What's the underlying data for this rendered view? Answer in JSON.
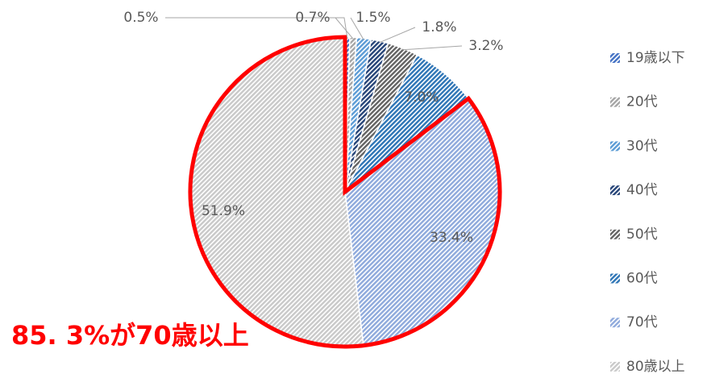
{
  "chart_data": {
    "type": "pie",
    "categories": [
      "19歳以下",
      "20代",
      "30代",
      "40代",
      "50代",
      "60代",
      "70代",
      "80歳以上"
    ],
    "values": [
      0.5,
      0.7,
      1.5,
      1.8,
      3.2,
      7.0,
      33.4,
      51.9
    ],
    "value_labels": [
      "0.5%",
      "0.7%",
      "1.5%",
      "1.8%",
      "3.2%",
      "7.0%",
      "33.4%",
      "51.9%"
    ],
    "colors": [
      "#4472c4",
      "#a5a5a5",
      "#5b9bd5",
      "#264478",
      "#636363",
      "#2e75b6",
      "#8faadc",
      "#c9c9c9"
    ],
    "legend": "right",
    "annotation": "85. 3%が70歳以上"
  }
}
